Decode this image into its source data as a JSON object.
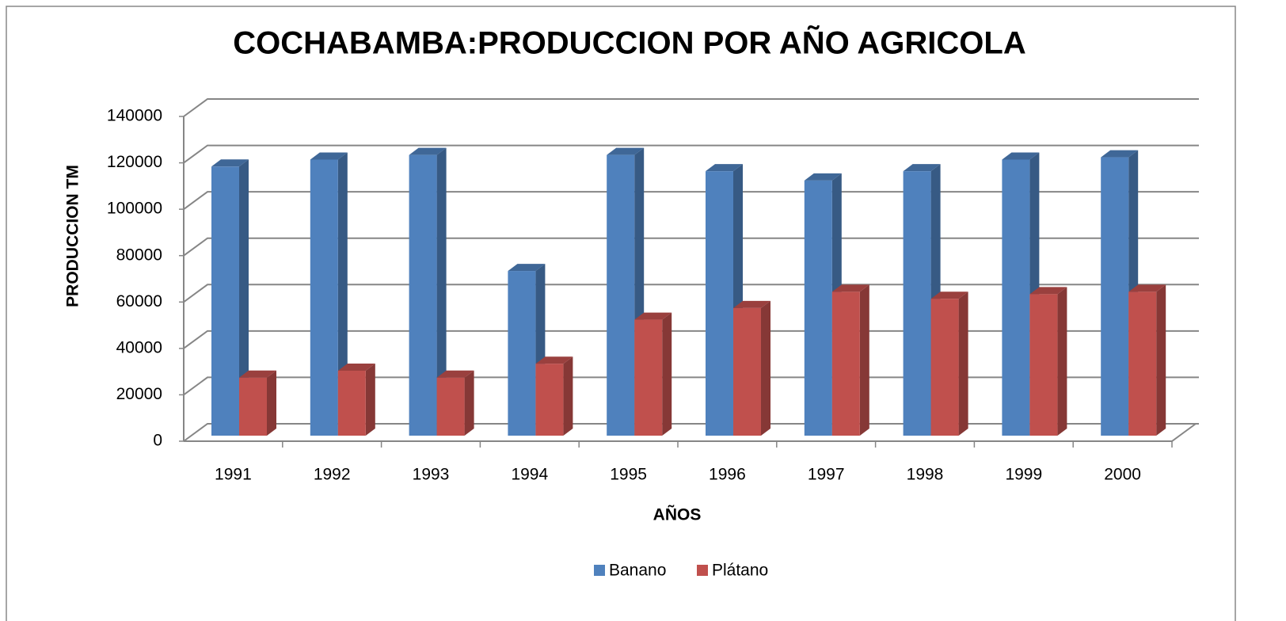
{
  "chart_data": {
    "type": "bar3d",
    "title": "COCHABAMBA:PRODUCCION POR AÑO AGRICOLA",
    "x_label": "AÑOS",
    "y_label": "PRODUCCION TM",
    "categories": [
      "1991",
      "1992",
      "1993",
      "1994",
      "1995",
      "1996",
      "1997",
      "1998",
      "1999",
      "2000"
    ],
    "series": [
      {
        "name": "Banano",
        "color": "#4f81bd",
        "values": [
          116000,
          119000,
          121000,
          71000,
          121000,
          114000,
          110000,
          114000,
          119000,
          120000
        ]
      },
      {
        "name": "Plátano",
        "color": "#c0504d",
        "values": [
          25000,
          28000,
          25000,
          31000,
          50000,
          55000,
          62000,
          59000,
          61000,
          62000
        ]
      }
    ],
    "ylim": [
      0,
      140000
    ],
    "yticks": [
      0,
      20000,
      40000,
      60000,
      80000,
      100000,
      120000,
      140000
    ],
    "grid": true,
    "legend": "bottom"
  }
}
